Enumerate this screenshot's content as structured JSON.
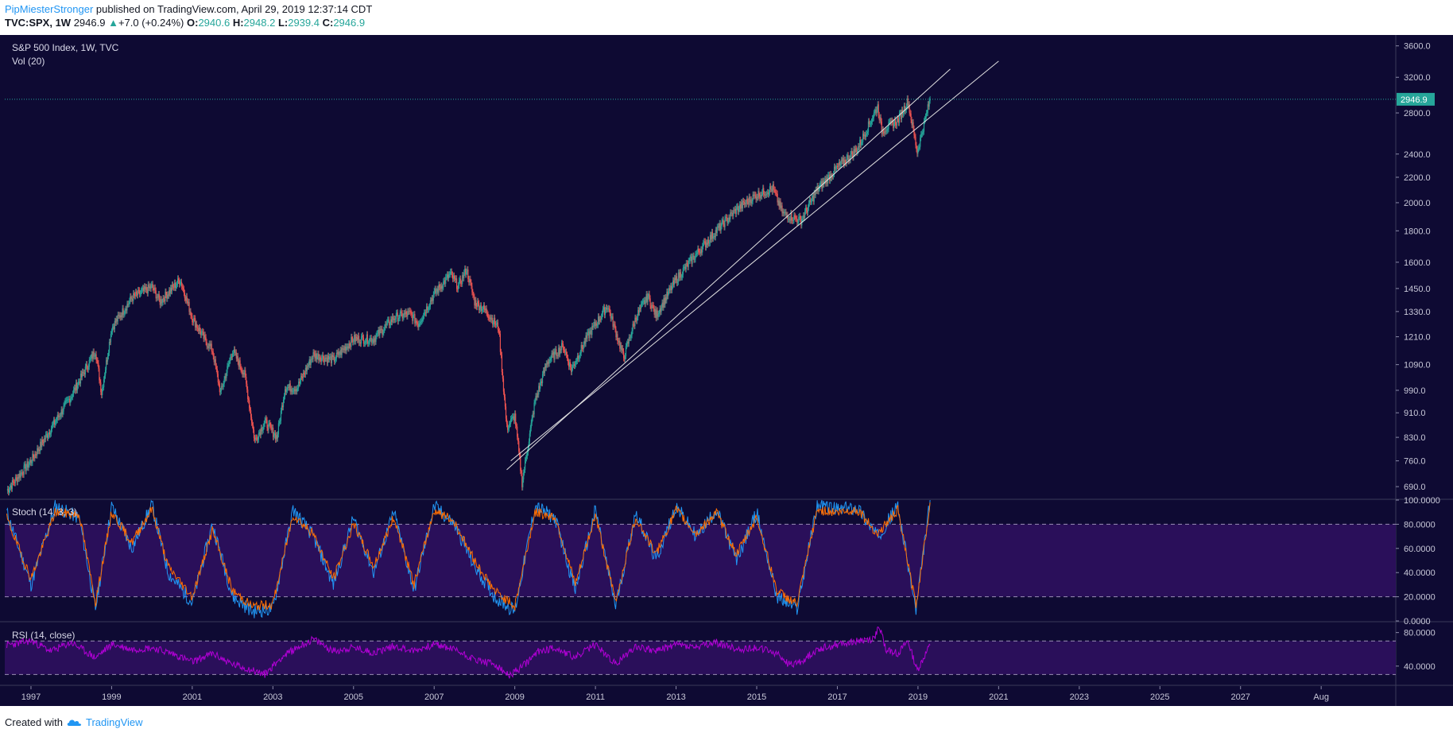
{
  "header": {
    "author": "PipMiesterStronger",
    "published_text": " published on TradingView.com, April 29, 2019 12:37:14 CDT",
    "symbol": "TVC:SPX, 1W",
    "last": "2946.9",
    "change": "+7.0 (+0.24%)",
    "o_label": "O:",
    "o": "2940.6",
    "h_label": "H:",
    "h": "2948.2",
    "l_label": "L:",
    "l": "2939.4",
    "c_label": "C:",
    "c": "2946.9"
  },
  "footer": {
    "created_with": "Created with",
    "brand": "TradingView"
  },
  "colors": {
    "background": "#0e0a33",
    "osc_band": "#2a0f5a",
    "up": "#26a69a",
    "down": "#ef5350",
    "trendline": "#e0e0e0",
    "stoch_k": "#2196f3",
    "stoch_d": "#ff6d00",
    "rsi": "#b000d4",
    "price_label_bg": "#26a69a"
  },
  "chart_data": [
    {
      "type": "candlestick",
      "title": "S&P 500 Index, 1W, TVC",
      "subtitle": "Vol (20)",
      "scale": "log",
      "ylim": [
        660,
        3750
      ],
      "current_price_label": "2946.9",
      "current_price": 2946.9,
      "y_ticks": [
        690,
        760,
        830,
        910,
        990,
        1090,
        1210,
        1330,
        1450,
        1600,
        1800,
        2000,
        2200,
        2400,
        2800,
        3200,
        3600
      ],
      "y_tick_labels": [
        "690.0",
        "760.0",
        "830.0",
        "910.0",
        "990.0",
        "1090.0",
        "1210.0",
        "1330.0",
        "1450.0",
        "1600.0",
        "1800.0",
        "2000.0",
        "2200.0",
        "2400.0",
        "2800.0",
        "3200.0",
        "3600.0"
      ],
      "x_range": [
        1996.35,
        2030.85
      ],
      "x_ticks": [
        1997,
        1999,
        2001,
        2003,
        2005,
        2007,
        2009,
        2011,
        2013,
        2015,
        2017,
        2019,
        2021,
        2023,
        2025,
        2027,
        2029
      ],
      "x_tick_labels": [
        "1997",
        "1999",
        "2001",
        "2003",
        "2005",
        "2007",
        "2009",
        "2011",
        "2013",
        "2015",
        "2017",
        "2019",
        "2021",
        "2023",
        "2025",
        "2027",
        "Aug"
      ],
      "series": [
        {
          "name": "",
          "x": [
            1996.4,
            1997.0,
            1997.6,
            1998.0,
            1998.6,
            1998.75,
            1999.0,
            1999.5,
            2000.0,
            2000.2,
            2000.5,
            2000.7,
            2001.0,
            2001.3,
            2001.5,
            2001.7,
            2002.0,
            2002.3,
            2002.55,
            2002.8,
            2003.1,
            2003.3,
            2003.6,
            2004.0,
            2004.5,
            2005.0,
            2005.5,
            2006.0,
            2006.4,
            2006.6,
            2007.0,
            2007.4,
            2007.6,
            2007.8,
            2008.0,
            2008.3,
            2008.6,
            2008.8,
            2009.0,
            2009.18,
            2009.5,
            2009.8,
            2010.2,
            2010.4,
            2010.8,
            2011.3,
            2011.7,
            2012.0,
            2012.3,
            2012.5,
            2013.0,
            2013.5,
            2014.0,
            2014.5,
            2015.0,
            2015.4,
            2015.65,
            2016.1,
            2016.5,
            2017.0,
            2017.5,
            2018.0,
            2018.1,
            2018.5,
            2018.75,
            2018.98,
            2019.3
          ],
          "y": [
            680,
            760,
            880,
            970,
            1150,
            980,
            1250,
            1400,
            1460,
            1380,
            1450,
            1500,
            1300,
            1200,
            1150,
            980,
            1150,
            1050,
            820,
            880,
            830,
            1000,
            1000,
            1130,
            1110,
            1200,
            1200,
            1300,
            1320,
            1270,
            1420,
            1530,
            1460,
            1560,
            1380,
            1330,
            1250,
            860,
            900,
            700,
            950,
            1100,
            1170,
            1070,
            1210,
            1360,
            1120,
            1300,
            1410,
            1310,
            1500,
            1650,
            1800,
            1950,
            2060,
            2110,
            1920,
            1870,
            2100,
            2280,
            2450,
            2870,
            2620,
            2720,
            2930,
            2420,
            2946.9
          ]
        }
      ],
      "trendlines": [
        {
          "x": [
            2008.8,
            2019.8
          ],
          "y": [
            735,
            3300
          ]
        },
        {
          "x": [
            2008.9,
            2021.0
          ],
          "y": [
            760,
            3400
          ]
        }
      ]
    },
    {
      "type": "line",
      "title": "Stoch (14, 3, 3)",
      "ylim": [
        0,
        100
      ],
      "y_ticks": [
        0,
        20,
        40,
        60,
        80,
        100
      ],
      "y_tick_labels": [
        "0.0000",
        "20.0000",
        "40.0000",
        "60.0000",
        "80.0000",
        "100.0000"
      ],
      "band": [
        20,
        80
      ],
      "series": [
        {
          "name": "",
          "x": [
            1996.4,
            1997.0,
            1997.6,
            1998.2,
            1998.6,
            1999.0,
            1999.5,
            2000.0,
            2000.4,
            2001.0,
            2001.5,
            2002.0,
            2002.5,
            2003.0,
            2003.5,
            2004.0,
            2004.5,
            2005.0,
            2005.5,
            2006.0,
            2006.5,
            2007.0,
            2007.5,
            2008.0,
            2008.5,
            2009.0,
            2009.5,
            2010.0,
            2010.5,
            2011.0,
            2011.5,
            2012.0,
            2012.5,
            2013.0,
            2013.5,
            2014.0,
            2014.5,
            2015.0,
            2015.5,
            2016.0,
            2016.5,
            2017.0,
            2017.5,
            2018.0,
            2018.5,
            2018.95,
            2019.3
          ],
          "y": [
            90,
            30,
            95,
            85,
            10,
            95,
            60,
            96,
            40,
            15,
            80,
            20,
            8,
            10,
            92,
            70,
            30,
            85,
            40,
            90,
            25,
            95,
            80,
            45,
            20,
            8,
            95,
            85,
            25,
            92,
            12,
            90,
            50,
            95,
            70,
            92,
            50,
            90,
            20,
            10,
            96,
            92,
            94,
            70,
            95,
            8,
            100
          ]
        },
        {
          "name": "",
          "x": [
            1996.4,
            1997.0,
            1997.6,
            1998.2,
            1998.6,
            1999.0,
            1999.5,
            2000.0,
            2000.4,
            2001.0,
            2001.5,
            2002.0,
            2002.5,
            2003.0,
            2003.5,
            2004.0,
            2004.5,
            2005.0,
            2005.5,
            2006.0,
            2006.5,
            2007.0,
            2007.5,
            2008.0,
            2008.5,
            2009.0,
            2009.5,
            2010.0,
            2010.5,
            2011.0,
            2011.5,
            2012.0,
            2012.5,
            2013.0,
            2013.5,
            2014.0,
            2014.5,
            2015.0,
            2015.5,
            2016.0,
            2016.5,
            2017.0,
            2017.5,
            2018.0,
            2018.5,
            2018.95,
            2019.3
          ],
          "y": [
            85,
            35,
            90,
            88,
            15,
            90,
            65,
            93,
            45,
            20,
            75,
            25,
            12,
            14,
            88,
            72,
            35,
            80,
            45,
            86,
            30,
            92,
            82,
            50,
            25,
            12,
            90,
            86,
            30,
            88,
            16,
            86,
            55,
            92,
            72,
            90,
            55,
            86,
            25,
            14,
            92,
            90,
            92,
            72,
            92,
            12,
            98
          ]
        }
      ]
    },
    {
      "type": "line",
      "title": "RSI (14, close)",
      "ylim": [
        18,
        92
      ],
      "y_ticks": [
        40,
        80
      ],
      "y_tick_labels": [
        "40.0000",
        "80.0000"
      ],
      "band": [
        30,
        70
      ],
      "series": [
        {
          "name": "",
          "x": [
            1996.4,
            1997.0,
            1997.5,
            1998.0,
            1998.6,
            1999.0,
            1999.5,
            2000.0,
            2000.5,
            2001.0,
            2001.5,
            2002.0,
            2002.5,
            2002.8,
            2003.2,
            2003.6,
            2004.0,
            2004.5,
            2005.0,
            2005.5,
            2006.0,
            2006.5,
            2007.0,
            2007.5,
            2008.0,
            2008.5,
            2008.85,
            2009.2,
            2009.6,
            2010.0,
            2010.5,
            2011.0,
            2011.5,
            2012.0,
            2012.5,
            2013.0,
            2013.5,
            2014.0,
            2014.5,
            2015.0,
            2015.5,
            2015.8,
            2016.1,
            2016.5,
            2017.0,
            2017.5,
            2017.9,
            2018.05,
            2018.2,
            2018.5,
            2018.75,
            2018.98,
            2019.3
          ],
          "y": [
            65,
            70,
            58,
            68,
            50,
            66,
            60,
            62,
            55,
            45,
            55,
            42,
            35,
            30,
            50,
            62,
            72,
            58,
            62,
            56,
            64,
            58,
            66,
            60,
            48,
            42,
            28,
            40,
            58,
            62,
            50,
            66,
            42,
            64,
            58,
            66,
            62,
            68,
            60,
            62,
            55,
            42,
            45,
            60,
            66,
            70,
            72,
            88,
            60,
            55,
            70,
            35,
            65
          ]
        }
      ]
    }
  ]
}
